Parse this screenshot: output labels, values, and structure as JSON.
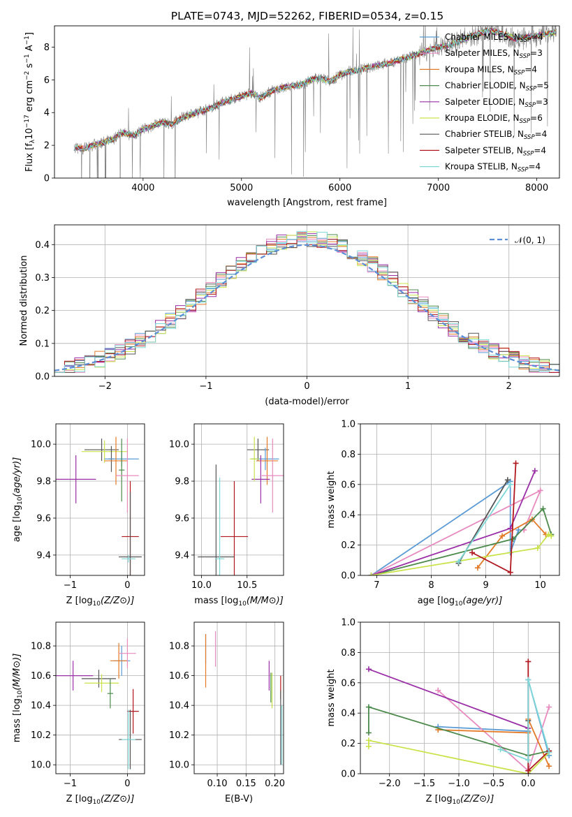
{
  "figure": {
    "title": "PLATE=0743, MJD=52262, FIBERID=0534, z=0.15"
  },
  "chart_data": [
    {
      "id": "spectrum",
      "type": "line",
      "title": "PLATE=0743, MJD=52262, FIBERID=0534, z=0.15",
      "xlabel": "wavelength [Angstrom, rest frame]",
      "ylabel": "Flux [f_λ 10^-17 erg cm^-2 s^-1 A^-1]",
      "xlim": [
        3100,
        8230
      ],
      "ylim": [
        0,
        9.3
      ],
      "xticks": [
        4000,
        5000,
        6000,
        7000,
        8000
      ],
      "yticks": [
        0,
        2,
        4,
        6,
        8
      ],
      "grid": false,
      "legend_position": "top-right",
      "data_color": "#808080",
      "data_points": [
        [
          3300,
          1.85
        ],
        [
          3400,
          1.8
        ],
        [
          3500,
          2.0
        ],
        [
          3600,
          2.2
        ],
        [
          3700,
          2.4
        ],
        [
          3800,
          2.8
        ],
        [
          3900,
          2.6
        ],
        [
          4000,
          3.0
        ],
        [
          4100,
          3.2
        ],
        [
          4200,
          3.4
        ],
        [
          4300,
          3.3
        ],
        [
          4400,
          3.7
        ],
        [
          4500,
          3.9
        ],
        [
          4600,
          4.1
        ],
        [
          4700,
          4.3
        ],
        [
          4800,
          4.6
        ],
        [
          4900,
          4.8
        ],
        [
          5000,
          5.0
        ],
        [
          5100,
          5.2
        ],
        [
          5200,
          4.9
        ],
        [
          5300,
          5.3
        ],
        [
          5400,
          5.5
        ],
        [
          5500,
          5.6
        ],
        [
          5600,
          5.7
        ],
        [
          5700,
          6.0
        ],
        [
          5800,
          6.1
        ],
        [
          5900,
          5.9
        ],
        [
          6000,
          6.3
        ],
        [
          6100,
          6.5
        ],
        [
          6200,
          6.6
        ],
        [
          6300,
          6.8
        ],
        [
          6400,
          6.9
        ],
        [
          6500,
          7.0
        ],
        [
          6600,
          7.2
        ],
        [
          6700,
          7.4
        ],
        [
          6800,
          7.6
        ],
        [
          6900,
          7.8
        ],
        [
          7000,
          8.0
        ],
        [
          7100,
          8.1
        ],
        [
          7200,
          8.3
        ],
        [
          7300,
          8.6
        ],
        [
          7400,
          8.8
        ],
        [
          7500,
          9.0
        ],
        [
          7600,
          8.9
        ],
        [
          7700,
          8.7
        ],
        [
          7800,
          8.5
        ],
        [
          7900,
          8.6
        ],
        [
          8000,
          8.7
        ],
        [
          8100,
          8.8
        ],
        [
          8200,
          8.9
        ]
      ],
      "series": [
        {
          "name": "Chabrier MILES, N_SSP=4",
          "label_main": "Chabrier MILES, N",
          "label_sub": "SSP",
          "label_end": "=4",
          "color": "#5b9bd5"
        },
        {
          "name": "Salpeter MILES, N_SSP=3",
          "label_main": "Salpeter MILES, N",
          "label_sub": "SSP",
          "label_end": "=3",
          "color": "#e88abf"
        },
        {
          "name": "Kroupa MILES, N_SSP=4",
          "label_main": "Kroupa MILES, N",
          "label_sub": "SSP",
          "label_end": "=4",
          "color": "#e37a27"
        },
        {
          "name": "Chabrier ELODIE, N_SSP=5",
          "label_main": "Chabrier ELODIE, N",
          "label_sub": "SSP",
          "label_end": "=5",
          "color": "#4c8a4c"
        },
        {
          "name": "Salpeter ELODIE, N_SSP=3",
          "label_main": "Salpeter ELODIE, N",
          "label_sub": "SSP",
          "label_end": "=3",
          "color": "#9a2ea6"
        },
        {
          "name": "Kroupa ELODIE, N_SSP=6",
          "label_main": "Kroupa ELODIE, N",
          "label_sub": "SSP",
          "label_end": "=6",
          "color": "#c8e34a"
        },
        {
          "name": "Chabrier STELIB, N_SSP=4",
          "label_main": "Chabrier STELIB, N",
          "label_sub": "SSP",
          "label_end": "=4",
          "color": "#555555"
        },
        {
          "name": "Salpeter STELIB, N_SSP=4",
          "label_main": "Salpeter STELIB, N",
          "label_sub": "SSP",
          "label_end": "=4",
          "color": "#b0171e"
        },
        {
          "name": "Kroupa STELIB, N_SSP=4",
          "label_main": "Kroupa STELIB, N",
          "label_sub": "SSP",
          "label_end": "=4",
          "color": "#7fd8d8"
        }
      ]
    },
    {
      "id": "residual_hist",
      "type": "histogram",
      "xlabel": "(data-model)/error",
      "ylabel": "Normed distribution",
      "xlim": [
        -2.5,
        2.5
      ],
      "ylim": [
        0,
        0.46
      ],
      "xticks": [
        -2,
        -1,
        0,
        1,
        2
      ],
      "yticks": [
        0.0,
        0.1,
        0.2,
        0.3,
        0.4
      ],
      "grid": true,
      "legend_position": "top-right",
      "reference_curve": {
        "name": "N(0,1)",
        "mean": 0,
        "sigma": 1,
        "color": "#5b8ed6",
        "style": "dashed"
      },
      "bin_edges": [
        -2.5,
        -2.4,
        -2.3,
        -2.2,
        -2.1,
        -2.0,
        -1.9,
        -1.8,
        -1.7,
        -1.6,
        -1.5,
        -1.4,
        -1.3,
        -1.2,
        -1.1,
        -1.0,
        -0.9,
        -0.8,
        -0.7,
        -0.6,
        -0.5,
        -0.4,
        -0.3,
        -0.2,
        -0.1,
        0.0,
        0.1,
        0.2,
        0.3,
        0.4,
        0.5,
        0.6,
        0.7,
        0.8,
        0.9,
        1.0,
        1.1,
        1.2,
        1.3,
        1.4,
        1.5,
        1.6,
        1.7,
        1.8,
        1.9,
        2.0,
        2.1,
        2.2,
        2.3,
        2.4,
        2.5
      ]
    },
    {
      "id": "age_vs_Z",
      "type": "errorbar",
      "xlabel": "Z [log10(Z/Z⊙)]",
      "ylabel": "age [log10(age/yr)]",
      "xlim": [
        -1.25,
        0.3
      ],
      "ylim": [
        9.29,
        10.11
      ],
      "xticks": [
        -1,
        0
      ],
      "yticks": [
        9.4,
        9.6,
        9.8,
        10.0
      ],
      "grid": true,
      "points": [
        {
          "x": -0.45,
          "y": 9.97,
          "xerr": 0.3,
          "yerr": 0.06,
          "color": "#555555"
        },
        {
          "x": -0.4,
          "y": 9.96,
          "xerr": 0.4,
          "yerr": 0.06,
          "color": "#c8e34a"
        },
        {
          "x": -0.9,
          "y": 9.81,
          "xerr": 0.35,
          "yerr": 0.13,
          "color": "#9a2ea6"
        },
        {
          "x": -0.28,
          "y": 9.92,
          "xerr": 0.05,
          "yerr": 0.07,
          "color": "#555555"
        },
        {
          "x": -0.1,
          "y": 9.92,
          "xerr": 0.3,
          "yerr": 0.04,
          "color": "#5b9bd5"
        },
        {
          "x": -0.2,
          "y": 9.91,
          "xerr": 0.2,
          "yerr": 0.13,
          "color": "#e37a27"
        },
        {
          "x": -0.1,
          "y": 9.86,
          "xerr": 0.05,
          "yerr": 0.17,
          "color": "#4c8a4c"
        },
        {
          "x": 0.0,
          "y": 9.83,
          "xerr": 0.2,
          "yerr": 0.2,
          "color": "#e88abf"
        },
        {
          "x": 0.05,
          "y": 9.5,
          "xerr": 0.15,
          "yerr": 0.3,
          "color": "#b0171e"
        },
        {
          "x": 0.05,
          "y": 9.39,
          "xerr": 0.2,
          "yerr": 0.35,
          "color": "#555555"
        },
        {
          "x": 0.02,
          "y": 9.38,
          "xerr": 0.12,
          "yerr": 0.02,
          "color": "#7fd8d8"
        }
      ]
    },
    {
      "id": "age_vs_mass",
      "type": "errorbar",
      "xlabel": "mass [log10(M/M⊙)]",
      "ylabel": "",
      "xlim": [
        9.92,
        10.9
      ],
      "ylim": [
        9.29,
        10.11
      ],
      "xticks": [
        10.0,
        10.5
      ],
      "yticks": [
        9.4,
        9.6,
        9.8,
        10.0
      ],
      "grid": true,
      "points": [
        {
          "x": 10.62,
          "y": 9.97,
          "xerr": 0.12,
          "yerr": 0.06,
          "color": "#555555"
        },
        {
          "x": 10.7,
          "y": 9.92,
          "xerr": 0.15,
          "yerr": 0.06,
          "color": "#5b9bd5"
        },
        {
          "x": 10.72,
          "y": 9.91,
          "xerr": 0.12,
          "yerr": 0.13,
          "color": "#e37a27"
        },
        {
          "x": 10.65,
          "y": 9.81,
          "xerr": 0.1,
          "yerr": 0.13,
          "color": "#9a2ea6"
        },
        {
          "x": 10.78,
          "y": 9.83,
          "xerr": 0.12,
          "yerr": 0.2,
          "color": "#e88abf"
        },
        {
          "x": 10.58,
          "y": 9.92,
          "xerr": 0.05,
          "yerr": 0.12,
          "color": "#c8e34a"
        },
        {
          "x": 10.36,
          "y": 9.5,
          "xerr": 0.15,
          "yerr": 0.3,
          "color": "#b0171e"
        },
        {
          "x": 10.16,
          "y": 9.39,
          "xerr": 0.2,
          "yerr": 0.5,
          "color": "#555555"
        },
        {
          "x": 10.2,
          "y": 9.38,
          "xerr": 0.05,
          "yerr": 0.44,
          "color": "#7fd8d8"
        }
      ]
    },
    {
      "id": "massweight_vs_age",
      "type": "line",
      "xlabel": "age [log10(age/yr)]",
      "ylabel": "mass weight",
      "xlim": [
        6.7,
        10.35
      ],
      "ylim": [
        0,
        1.0
      ],
      "xticks": [
        7,
        8,
        9,
        10
      ],
      "yticks": [
        0.0,
        0.2,
        0.4,
        0.6,
        0.8,
        1.0
      ],
      "grid": true,
      "series": [
        {
          "color": "#5b9bd5",
          "points": [
            [
              6.9,
              0.0
            ],
            [
              9.45,
              0.62
            ],
            [
              9.45,
              0.15
            ],
            [
              9.6,
              0.3
            ]
          ]
        },
        {
          "color": "#e88abf",
          "points": [
            [
              6.9,
              0.0
            ],
            [
              10.0,
              0.56
            ],
            [
              9.7,
              0.3
            ]
          ]
        },
        {
          "color": "#e37a27",
          "points": [
            [
              8.85,
              0.05
            ],
            [
              9.3,
              0.26
            ],
            [
              9.85,
              0.37
            ],
            [
              10.1,
              0.27
            ]
          ]
        },
        {
          "color": "#4c8a4c",
          "points": [
            [
              6.9,
              0.0
            ],
            [
              9.5,
              0.24
            ],
            [
              10.05,
              0.44
            ],
            [
              10.2,
              0.27
            ]
          ]
        },
        {
          "color": "#9a2ea6",
          "points": [
            [
              6.9,
              0.0
            ],
            [
              9.45,
              0.31
            ],
            [
              9.9,
              0.69
            ]
          ]
        },
        {
          "color": "#c8e34a",
          "points": [
            [
              6.9,
              0.0
            ],
            [
              9.95,
              0.18
            ],
            [
              10.15,
              0.27
            ],
            [
              10.2,
              0.26
            ]
          ]
        },
        {
          "color": "#555555",
          "points": [
            [
              8.5,
              0.08
            ],
            [
              9.4,
              0.63
            ]
          ]
        },
        {
          "color": "#b0171e",
          "points": [
            [
              8.75,
              0.15
            ],
            [
              9.45,
              0.02
            ],
            [
              9.55,
              0.74
            ]
          ]
        },
        {
          "color": "#7fd8d8",
          "points": [
            [
              8.5,
              0.09
            ],
            [
              9.45,
              0.6
            ]
          ]
        }
      ]
    },
    {
      "id": "mass_vs_Z",
      "type": "errorbar",
      "xlabel": "Z [log10(Z/Z⊙)]",
      "ylabel": "mass [log10(M/M⊙)]",
      "xlim": [
        -1.25,
        0.3
      ],
      "ylim": [
        9.94,
        10.96
      ],
      "xticks": [
        -1,
        0
      ],
      "yticks": [
        10.0,
        10.2,
        10.4,
        10.6,
        10.8
      ],
      "grid": true,
      "points": [
        {
          "x": -0.95,
          "y": 10.6,
          "xerr": 0.35,
          "yerr": 0.1,
          "color": "#9a2ea6"
        },
        {
          "x": -0.5,
          "y": 10.58,
          "xerr": 0.3,
          "yerr": 0.06,
          "color": "#555555"
        },
        {
          "x": -0.45,
          "y": 10.55,
          "xerr": 0.3,
          "yerr": 0.06,
          "color": "#c8e34a"
        },
        {
          "x": -0.3,
          "y": 10.48,
          "xerr": 0.05,
          "yerr": 0.1,
          "color": "#4c8a4c"
        },
        {
          "x": -0.1,
          "y": 10.7,
          "xerr": 0.15,
          "yerr": 0.1,
          "color": "#5b9bd5"
        },
        {
          "x": -0.15,
          "y": 10.7,
          "xerr": 0.15,
          "yerr": 0.12,
          "color": "#e37a27"
        },
        {
          "x": 0.0,
          "y": 10.75,
          "xerr": 0.15,
          "yerr": 0.1,
          "color": "#e88abf"
        },
        {
          "x": 0.1,
          "y": 10.36,
          "xerr": 0.1,
          "yerr": 0.15,
          "color": "#b0171e"
        },
        {
          "x": 0.05,
          "y": 10.17,
          "xerr": 0.2,
          "yerr": 0.2,
          "color": "#555555"
        },
        {
          "x": 0.02,
          "y": 10.17,
          "xerr": 0.12,
          "yerr": 0.2,
          "color": "#7fd8d8"
        }
      ]
    },
    {
      "id": "mass_vs_ebv",
      "type": "errorbar",
      "xlabel": "E(B-V)",
      "ylabel": "",
      "xlim": [
        0.06,
        0.215
      ],
      "ylim": [
        9.94,
        10.96
      ],
      "xticks": [
        0.1,
        0.15,
        0.2
      ],
      "yticks": [
        10.0,
        10.2,
        10.4,
        10.6,
        10.8
      ],
      "grid": true,
      "points": [
        {
          "x": 0.08,
          "y": 10.78,
          "xerr": 0.0,
          "yerr": 0.1,
          "color": "#5b9bd5"
        },
        {
          "x": 0.08,
          "y": 10.7,
          "xerr": 0.0,
          "yerr": 0.18,
          "color": "#e37a27"
        },
        {
          "x": 0.097,
          "y": 10.78,
          "xerr": 0.0,
          "yerr": 0.12,
          "color": "#e88abf"
        },
        {
          "x": 0.19,
          "y": 10.6,
          "xerr": 0.0,
          "yerr": 0.1,
          "color": "#9a2ea6"
        },
        {
          "x": 0.193,
          "y": 10.52,
          "xerr": 0.0,
          "yerr": 0.1,
          "color": "#4c8a4c"
        },
        {
          "x": 0.195,
          "y": 10.5,
          "xerr": 0.0,
          "yerr": 0.12,
          "color": "#c8e34a"
        },
        {
          "x": 0.21,
          "y": 10.52,
          "xerr": 0.0,
          "yerr": 0.08,
          "color": "#b0171e"
        },
        {
          "x": 0.21,
          "y": 10.25,
          "xerr": 0.0,
          "yerr": 0.25,
          "color": "#555555"
        },
        {
          "x": 0.212,
          "y": 10.2,
          "xerr": 0.0,
          "yerr": 0.2,
          "color": "#7fd8d8"
        }
      ]
    },
    {
      "id": "massweight_vs_Z",
      "type": "line",
      "xlabel": "Z [log10(Z/Z⊙)]",
      "ylabel": "mass weight",
      "xlim": [
        -2.42,
        0.45
      ],
      "ylim": [
        0,
        1.0
      ],
      "xticks": [
        -2.0,
        -1.5,
        -1.0,
        -0.5,
        0.0
      ],
      "yticks": [
        0.0,
        0.2,
        0.4,
        0.6,
        0.8,
        1.0
      ],
      "grid": true,
      "series": [
        {
          "color": "#5b9bd5",
          "points": [
            [
              -1.3,
              0.31
            ],
            [
              0.0,
              0.28
            ],
            [
              0.0,
              0.62
            ],
            [
              0.3,
              0.12
            ]
          ]
        },
        {
          "color": "#e88abf",
          "points": [
            [
              -1.3,
              0.55
            ],
            [
              0.0,
              0.02
            ],
            [
              0.3,
              0.44
            ]
          ]
        },
        {
          "color": "#e37a27",
          "points": [
            [
              -1.3,
              0.29
            ],
            [
              0.0,
              0.27
            ],
            [
              0.0,
              0.36
            ],
            [
              0.3,
              0.05
            ]
          ]
        },
        {
          "color": "#4c8a4c",
          "points": [
            [
              -2.3,
              0.27
            ],
            [
              -2.3,
              0.44
            ],
            [
              0.0,
              0.12
            ],
            [
              0.3,
              0.15
            ]
          ]
        },
        {
          "color": "#9a2ea6",
          "points": [
            [
              -2.3,
              0.69
            ],
            [
              0.0,
              0.3
            ]
          ]
        },
        {
          "color": "#c8e34a",
          "points": [
            [
              -2.3,
              0.18
            ],
            [
              -2.3,
              0.22
            ],
            [
              0.0,
              0.0
            ],
            [
              0.3,
              0.14
            ]
          ]
        },
        {
          "color": "#555555",
          "points": [
            [
              0.0,
              0.0
            ],
            [
              0.0,
              0.35
            ]
          ]
        },
        {
          "color": "#b0171e",
          "points": [
            [
              0.0,
              0.74
            ],
            [
              0.0,
              0.02
            ],
            [
              0.3,
              0.15
            ]
          ]
        },
        {
          "color": "#7fd8d8",
          "points": [
            [
              -0.4,
              0.16
            ],
            [
              0.0,
              0.09
            ],
            [
              0.0,
              0.62
            ],
            [
              0.3,
              0.14
            ]
          ]
        }
      ]
    }
  ]
}
